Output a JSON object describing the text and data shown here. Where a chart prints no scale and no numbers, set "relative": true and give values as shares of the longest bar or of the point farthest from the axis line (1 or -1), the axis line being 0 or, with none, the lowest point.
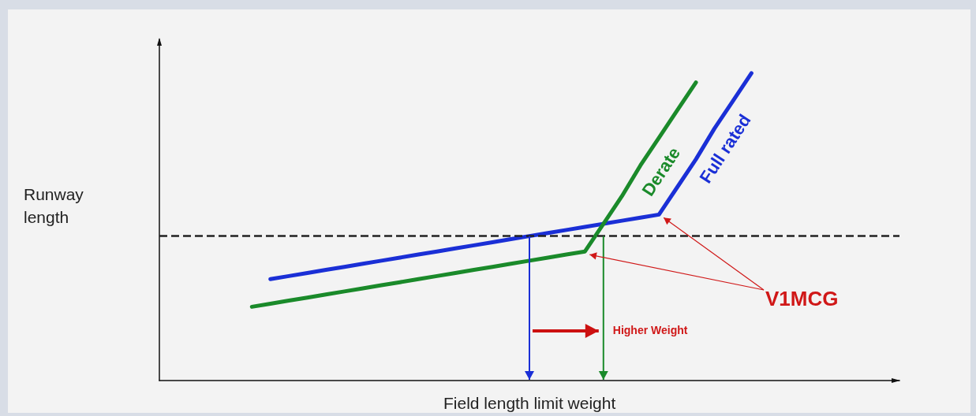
{
  "chart_data": {
    "type": "line",
    "relative": true,
    "xlabel": "Field length limit weight",
    "ylabel": "Runway length",
    "tick_labels": false,
    "marker": "none",
    "line_style": "solid",
    "categories": [
      null,
      null,
      null,
      null,
      null,
      null,
      null,
      null,
      null,
      null,
      null,
      null,
      null,
      null,
      null,
      null,
      null,
      null,
      null,
      null,
      null,
      null,
      null,
      null,
      null,
      null,
      null,
      null,
      null,
      null,
      null,
      null,
      null,
      null,
      null,
      null,
      null,
      null,
      null,
      null,
      null
    ],
    "series": [
      {
        "name": "Full rated",
        "color": "#1a2fd6",
        "values": [
          null,
          null,
          null,
          null,
          null,
          null,
          0.33,
          0.34,
          0.35,
          0.36,
          0.37,
          0.38,
          0.39,
          0.4,
          0.41,
          0.42,
          0.43,
          0.44,
          0.45,
          0.46,
          0.47,
          0.48,
          0.49,
          0.5,
          0.51,
          0.52,
          0.53,
          0.54,
          0.63,
          0.72,
          0.82,
          0.91,
          1,
          null,
          null,
          null,
          null,
          null,
          null,
          null,
          null
        ]
      },
      {
        "name": "Derate",
        "color": "#1a8a2a",
        "values": [
          null,
          null,
          null,
          null,
          null,
          0.24,
          0.25,
          0.26,
          0.27,
          0.28,
          0.29,
          0.3,
          0.31,
          0.32,
          0.33,
          0.34,
          0.35,
          0.36,
          0.37,
          0.38,
          0.39,
          0.4,
          0.41,
          0.42,
          0.51,
          0.6,
          0.7,
          0.79,
          0.88,
          0.97,
          null,
          null,
          null,
          null,
          null,
          null,
          null,
          null,
          null,
          null,
          null
        ]
      }
    ],
    "ref_lines": [
      {
        "axis": "y",
        "value": 0.47,
        "color": "#222222",
        "line_style": "dashed"
      }
    ],
    "annotations": [
      "V1MCG",
      "Higher Weight"
    ]
  }
}
